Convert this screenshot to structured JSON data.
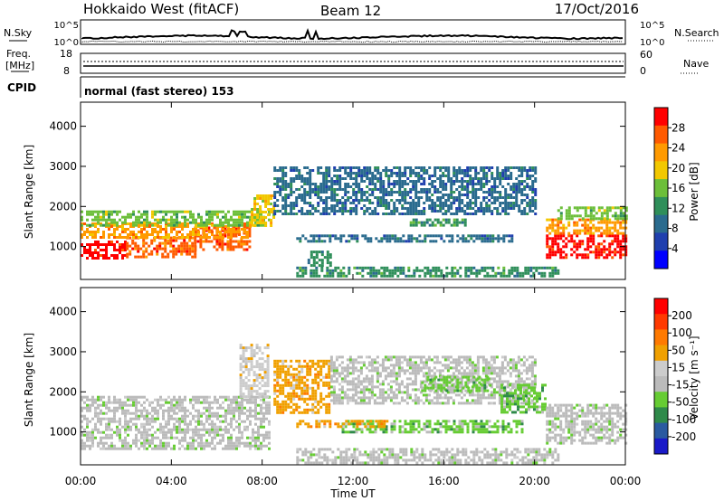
{
  "header": {
    "station": "Hokkaido West (fitACF)",
    "beam": "Beam 12",
    "date": "17/Oct/2016"
  },
  "top_strip": {
    "n_sky_label": "N.Sky",
    "n_search_label": "N.Search",
    "freq_label_line1": "Freq.",
    "freq_label_line2": "[MHz]",
    "nave_label": "Nave",
    "cpid_label": "CPID",
    "cpid_value": "normal (fast stereo) 153",
    "noise_ticks_left": [
      "10^5",
      "10^0"
    ],
    "noise_ticks_right": [
      "10^5",
      "10^0"
    ],
    "freq_ticks": [
      "18",
      "8"
    ],
    "nave_ticks": [
      "60",
      "0"
    ]
  },
  "colors": {
    "power_scale": [
      "#0000ff",
      "#1f3fae",
      "#2a6b8e",
      "#2f8f5a",
      "#6cbf3a",
      "#f2c800",
      "#ff9a00",
      "#ff5a00",
      "#ff0000"
    ],
    "velocity_scale": [
      "#1a1ac8",
      "#2a5aa0",
      "#2f8a4a",
      "#66cc33",
      "#bbbbbb",
      "#cccccc",
      "#f0a000",
      "#ff7a00",
      "#ff3a00",
      "#ff0000"
    ]
  },
  "chart_data": [
    {
      "type": "heatmap",
      "name": "power",
      "title": "",
      "xlabel": "Time UT",
      "ylabel": "Slant Range [km]",
      "colorbar_label": "Power [dB]",
      "colorbar_ticks": [
        "28",
        "24",
        "20",
        "16",
        "12",
        "8",
        "4"
      ],
      "x_ticks": [
        "00:00",
        "04:00",
        "08:00",
        "12:00",
        "16:00",
        "20:00",
        "00:00"
      ],
      "y_ticks": [
        "1000",
        "2000",
        "3000",
        "4000"
      ],
      "xlim": [
        0,
        24
      ],
      "ylim": [
        180,
        4600
      ],
      "cells": [
        {
          "t0": 0.0,
          "t1": 2.0,
          "r0": 700,
          "r1": 1150,
          "level": 8
        },
        {
          "t0": 2.0,
          "t1": 5.0,
          "r0": 750,
          "r1": 1250,
          "level": 7
        },
        {
          "t0": 5.0,
          "t1": 7.5,
          "r0": 900,
          "r1": 1500,
          "level": 7
        },
        {
          "t0": 0.0,
          "t1": 7.5,
          "r0": 1200,
          "r1": 1600,
          "level": 6
        },
        {
          "t0": 0.0,
          "t1": 8.3,
          "r0": 1500,
          "r1": 1900,
          "level": 4
        },
        {
          "t0": 7.5,
          "t1": 8.5,
          "r0": 1500,
          "r1": 2300,
          "level": 5
        },
        {
          "t0": 8.5,
          "t1": 20.0,
          "r0": 1800,
          "r1": 3000,
          "level": 2
        },
        {
          "t0": 9.5,
          "t1": 19.0,
          "r0": 1100,
          "r1": 1300,
          "level": 2
        },
        {
          "t0": 14.5,
          "t1": 17.0,
          "r0": 1500,
          "r1": 1700,
          "level": 3
        },
        {
          "t0": 20.5,
          "t1": 24.0,
          "r0": 700,
          "r1": 1300,
          "level": 8
        },
        {
          "t0": 20.5,
          "t1": 24.0,
          "r0": 1300,
          "r1": 1700,
          "level": 6
        },
        {
          "t0": 21.0,
          "t1": 24.0,
          "r0": 1700,
          "r1": 2000,
          "level": 4
        },
        {
          "t0": 9.5,
          "t1": 21.0,
          "r0": 250,
          "r1": 500,
          "level": 3
        },
        {
          "t0": 10.0,
          "t1": 11.0,
          "r0": 500,
          "r1": 900,
          "level": 3
        }
      ]
    },
    {
      "type": "heatmap",
      "name": "velocity",
      "title": "",
      "xlabel": "Time UT",
      "ylabel": "Slant Range [km]",
      "colorbar_label": "Velocity [m s⁻¹]",
      "colorbar_ticks": [
        "200",
        "100",
        "50",
        "15",
        "-15",
        "-50",
        "-100",
        "-200"
      ],
      "x_ticks": [
        "00:00",
        "04:00",
        "08:00",
        "12:00",
        "16:00",
        "20:00",
        "00:00"
      ],
      "y_ticks": [
        "1000",
        "2000",
        "3000",
        "4000"
      ],
      "xlim": [
        0,
        24
      ],
      "ylim": [
        180,
        4600
      ],
      "cells": [
        {
          "t0": 0.0,
          "t1": 8.3,
          "r0": 600,
          "r1": 1900,
          "level": 4
        },
        {
          "t0": 7.0,
          "t1": 8.3,
          "r0": 1900,
          "r1": 3200,
          "level": 5
        },
        {
          "t0": 8.5,
          "t1": 11.0,
          "r0": 1500,
          "r1": 2800,
          "level": 6
        },
        {
          "t0": 11.0,
          "t1": 20.0,
          "r0": 1700,
          "r1": 2900,
          "level": 4
        },
        {
          "t0": 11.5,
          "t1": 19.5,
          "r0": 1000,
          "r1": 1300,
          "level": 3
        },
        {
          "t0": 15.0,
          "t1": 18.0,
          "r0": 2000,
          "r1": 2400,
          "level": 3
        },
        {
          "t0": 18.5,
          "t1": 20.5,
          "r0": 1500,
          "r1": 2200,
          "level": 3
        },
        {
          "t0": 9.5,
          "t1": 13.5,
          "r0": 1100,
          "r1": 1300,
          "level": 6
        },
        {
          "t0": 20.5,
          "t1": 24.0,
          "r0": 700,
          "r1": 1700,
          "level": 4
        },
        {
          "t0": 9.5,
          "t1": 21.0,
          "r0": 250,
          "r1": 600,
          "level": 4
        }
      ]
    }
  ]
}
